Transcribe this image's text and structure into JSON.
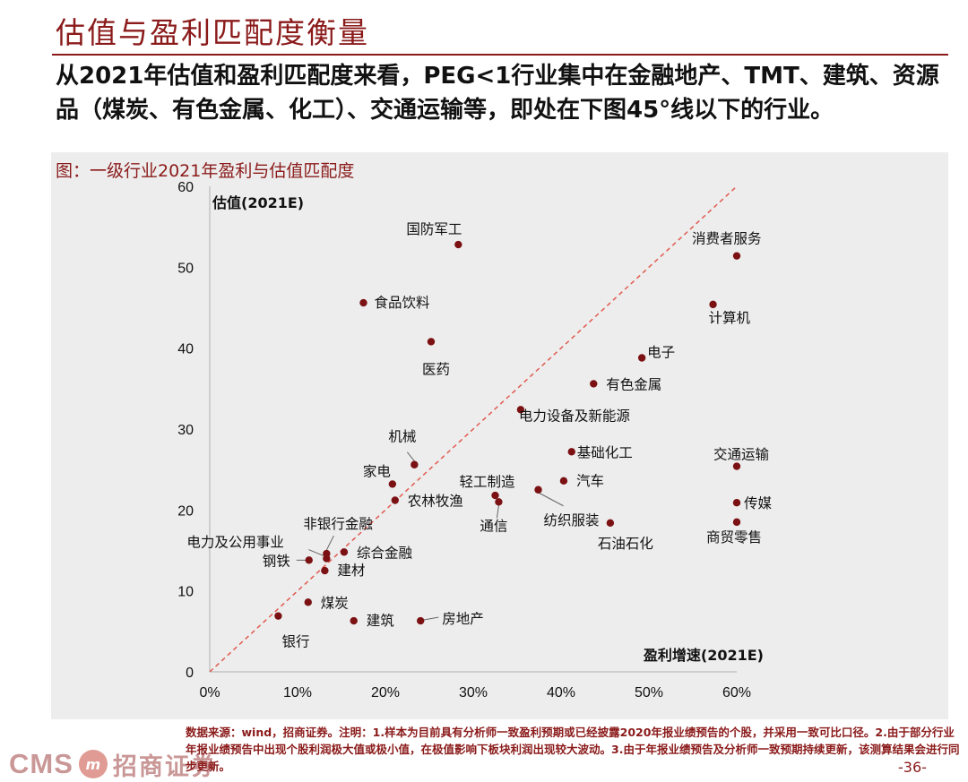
{
  "page": {
    "title": "估值与盈利匹配度衡量",
    "summary": "从2021年估值和盈利匹配度来看，PEG<1行业集中在金融地产、TMT、建筑、资源品（煤炭、有色金属、化工）、交通运输等，即处在下图45°线以下的行业。",
    "caption": "图：一级行业2021年盈利与估值匹配度",
    "source": "数据来源：wind，招商证券。注明：1.样本为目前具有分析师一致盈利预期或已经披露2020年报业绩预告的个股，并采用一致可比口径。2.由于部分行业年报业绩预告中出现个股利润极大值或极小值，在极值影响下板块利润出现较大波动。3.由于年报业绩预告及分析师一致预期持续更新，该测算结果会进行同步更新。",
    "page_number": "-36-",
    "logo_cms": "CMS",
    "logo_badge": "m",
    "logo_name": "招商证券"
  },
  "chart_data": {
    "type": "scatter",
    "xlabel": "盈利增速(2021E)",
    "ylabel": "估值(2021E)",
    "xlim": [
      0,
      0.6
    ],
    "ylim": [
      0,
      60
    ],
    "xticks": [
      "0%",
      "10%",
      "20%",
      "30%",
      "40%",
      "50%",
      "60%"
    ],
    "yticks": [
      "0",
      "10",
      "20",
      "30",
      "40",
      "50",
      "60"
    ],
    "reference_line": "45° line (y = 100·x)",
    "colors": {
      "point": "#7b1113",
      "reference": "#e05a4f",
      "axis": "#b0b0b0"
    },
    "points": [
      {
        "label": "国防军工",
        "x": 0.283,
        "y": 52.8
      },
      {
        "label": "消费者服务",
        "x": 0.6,
        "y": 51.4
      },
      {
        "label": "食品饮料",
        "x": 0.175,
        "y": 45.6
      },
      {
        "label": "计算机",
        "x": 0.573,
        "y": 45.4
      },
      {
        "label": "医药",
        "x": 0.252,
        "y": 40.8
      },
      {
        "label": "电子",
        "x": 0.492,
        "y": 38.8
      },
      {
        "label": "有色金属",
        "x": 0.437,
        "y": 35.6
      },
      {
        "label": "电力设备及新能源",
        "x": 0.354,
        "y": 32.4
      },
      {
        "label": "基础化工",
        "x": 0.412,
        "y": 27.2
      },
      {
        "label": "机械",
        "x": 0.233,
        "y": 25.6
      },
      {
        "label": "交通运输",
        "x": 0.6,
        "y": 25.4
      },
      {
        "label": "家电",
        "x": 0.208,
        "y": 23.2
      },
      {
        "label": "汽车",
        "x": 0.403,
        "y": 23.6
      },
      {
        "label": "纺织服装",
        "x": 0.374,
        "y": 22.5
      },
      {
        "label": "轻工制造",
        "x": 0.325,
        "y": 21.8
      },
      {
        "label": "农林牧渔",
        "x": 0.211,
        "y": 21.2
      },
      {
        "label": "通信",
        "x": 0.329,
        "y": 21.0
      },
      {
        "label": "传媒",
        "x": 0.6,
        "y": 20.9
      },
      {
        "label": "商贸零售",
        "x": 0.6,
        "y": 18.5
      },
      {
        "label": "石油石化",
        "x": 0.456,
        "y": 18.4
      },
      {
        "label": "非银行金融",
        "x": 0.133,
        "y": 14.6
      },
      {
        "label": "综合金融",
        "x": 0.153,
        "y": 14.8
      },
      {
        "label": "电力及公用事业",
        "x": 0.133,
        "y": 14.0
      },
      {
        "label": "钢铁",
        "x": 0.113,
        "y": 13.8
      },
      {
        "label": "建材",
        "x": 0.131,
        "y": 12.5
      },
      {
        "label": "煤炭",
        "x": 0.112,
        "y": 8.6
      },
      {
        "label": "银行",
        "x": 0.078,
        "y": 6.9
      },
      {
        "label": "建筑",
        "x": 0.164,
        "y": 6.3
      },
      {
        "label": "房地产",
        "x": 0.24,
        "y": 6.3
      }
    ]
  }
}
